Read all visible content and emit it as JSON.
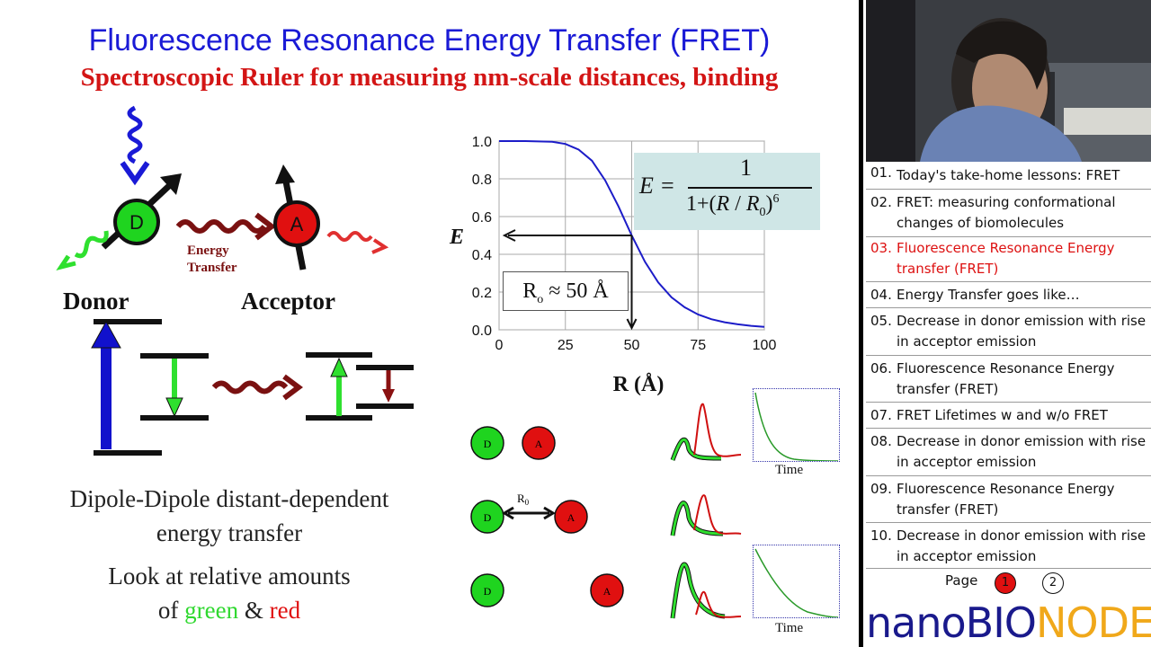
{
  "slide": {
    "title": "Fluorescence Resonance Energy Transfer (FRET)",
    "subtitle": "Spectroscopic Ruler for measuring nm-scale distances, binding",
    "donor_circle_label": "D",
    "acceptor_circle_label": "A",
    "energy_transfer_label_1": "Energy",
    "energy_transfer_label_2": "Transfer",
    "donor_label": "Donor",
    "acceptor_label": "Acceptor",
    "dipole_line1": "Dipole-Dipole distant-dependent",
    "dipole_line2": "energy transfer",
    "look_line1": "Look at relative amounts",
    "look_of": "of ",
    "look_green": "green",
    "look_amp": " & ",
    "look_red": "red",
    "formula": {
      "lhs": "E =",
      "numerator": "1",
      "denom_pre": "1+(",
      "denom_R": "R",
      "denom_slash": " / ",
      "denom_R0": "R",
      "denom_sub": "0",
      "denom_close": ")",
      "denom_exp": "6"
    },
    "r0_box": {
      "prefix": "R",
      "sub": "o",
      "text": " ≈ 50 Å"
    },
    "pairs": [
      {
        "d": "D",
        "a": "A",
        "r0": ""
      },
      {
        "d": "D",
        "a": "A",
        "r0": "R",
        "r0_sub": "0"
      },
      {
        "d": "D",
        "a": "A",
        "r0": ""
      }
    ],
    "time_label_1": "Time",
    "time_label_2": "Time",
    "colors": {
      "title": "#1a1ad6",
      "subtitle": "#d31515",
      "donor": "#1fd41f",
      "acceptor": "#e01010",
      "curve": "#1c1cc8",
      "formula_bg": "#cfe6e6"
    }
  },
  "chart_data": {
    "type": "line",
    "title": "",
    "xlabel": "R (Å)",
    "ylabel": "E",
    "xlim": [
      0,
      100
    ],
    "ylim": [
      0,
      1.0
    ],
    "xticks": [
      "0",
      "25",
      "50",
      "75",
      "100"
    ],
    "yticks": [
      "0.0",
      "0.2",
      "0.4",
      "0.6",
      "0.8",
      "1.0"
    ],
    "grid": true,
    "series": [
      {
        "x": [
          0,
          10,
          20,
          25,
          30,
          35,
          40,
          45,
          50,
          55,
          60,
          65,
          70,
          75,
          80,
          85,
          90,
          95,
          100
        ],
        "y": [
          1.0,
          1.0,
          0.996,
          0.985,
          0.955,
          0.896,
          0.792,
          0.654,
          0.5,
          0.36,
          0.251,
          0.172,
          0.119,
          0.081,
          0.056,
          0.04,
          0.029,
          0.021,
          0.015
        ]
      }
    ]
  },
  "sidebar": {
    "chapters": [
      {
        "num": "01.",
        "text": "Today's take-home lessons: FRET"
      },
      {
        "num": "02.",
        "text": "FRET: measuring conformational changes of biomolecules"
      },
      {
        "num": "03.",
        "text": "Fluorescence Resonance Energy transfer (FRET)"
      },
      {
        "num": "04.",
        "text": "Energy Transfer goes like…"
      },
      {
        "num": "05.",
        "text": "Decrease in donor emission with rise in acceptor emission"
      },
      {
        "num": "06.",
        "text": "Fluorescence Resonance Energy transfer (FRET)"
      },
      {
        "num": "07.",
        "text": "FRET Lifetimes w and w/o FRET"
      },
      {
        "num": "08.",
        "text": "Decrease in donor emission with rise in acceptor emission"
      },
      {
        "num": "09.",
        "text": "Fluorescence Resonance Energy transfer (FRET)"
      },
      {
        "num": "10.",
        "text": "Decrease in donor emission with rise in acceptor emission"
      }
    ],
    "active_chapter": "03.",
    "page_label": "Page",
    "pages": [
      "1",
      "2"
    ],
    "current_page": "1",
    "brand_part1": "nano",
    "brand_part2": "BIO",
    "brand_part3": "NODE",
    "brand_colors": {
      "part1": "#1a1a8c",
      "part2": "#1a1a8c",
      "part3": "#f0a81a"
    }
  }
}
